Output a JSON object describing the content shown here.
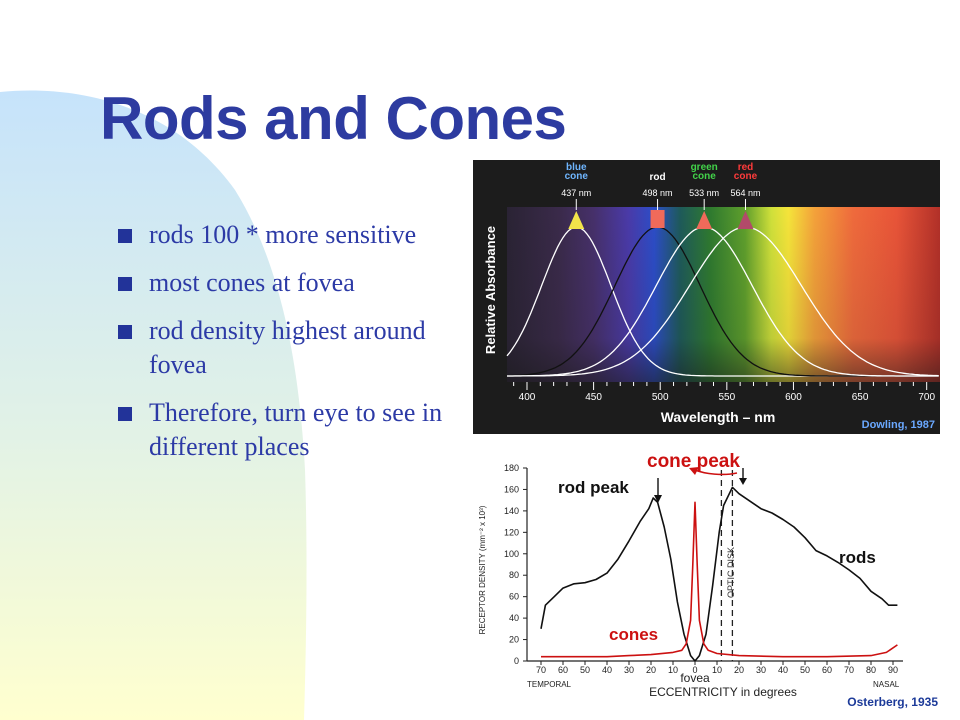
{
  "slide": {
    "title": "Rods and Cones",
    "bullets": [
      "rods 100 * more sensitive",
      "most cones at fovea",
      "rod density highest around fovea",
      "Therefore, turn eye to see in different places"
    ]
  },
  "colors": {
    "title": "#2d3ba0",
    "bullet_text": "#2c3aa6",
    "bullet_marker": "#223399",
    "background_gradient": [
      "#c6e3fb",
      "#ffffcf"
    ]
  },
  "chart_data": [
    {
      "type": "line",
      "title": "",
      "xlabel": "Wavelength – nm",
      "ylabel": "Relative Absorbance",
      "credit": "Dowling, 1987",
      "xlim": [
        385,
        710
      ],
      "x_ticks": [
        "400",
        "450",
        "500",
        "550",
        "600",
        "650",
        "700"
      ],
      "grid": false,
      "peak_labels": [
        {
          "label": "blue cone",
          "wavelength": "437 nm",
          "x": 437
        },
        {
          "label": "rod",
          "wavelength": "498 nm",
          "x": 498
        },
        {
          "label": "green cone",
          "wavelength": "533 nm",
          "x": 533
        },
        {
          "label": "red cone",
          "wavelength": "564 nm",
          "x": 564
        }
      ],
      "series": [
        {
          "peak": 437,
          "width": 26,
          "color": "#ffffff"
        },
        {
          "peak": 498,
          "width": 32,
          "color": "#111111"
        },
        {
          "peak": 533,
          "width": 36,
          "color": "#ffffff"
        },
        {
          "peak": 564,
          "width": 42,
          "color": "#ffffff"
        }
      ]
    },
    {
      "type": "line",
      "title": "",
      "xlabel": "ECCENTRICITY in degrees",
      "ylabel": "RECEPTOR DENSITY (mm⁻² x 10³)",
      "credit": "Osterberg, 1935",
      "xlim": [
        -75,
        95
      ],
      "ylim": [
        0,
        180
      ],
      "x_ticks": [
        "70",
        "60",
        "50",
        "40",
        "30",
        "20",
        "10",
        "0",
        "10",
        "20",
        "30",
        "40",
        "50",
        "60",
        "70",
        "80",
        "90"
      ],
      "y_ticks": [
        "0",
        "20",
        "40",
        "60",
        "80",
        "100",
        "120",
        "140",
        "160",
        "180"
      ],
      "x_side_labels": {
        "left": "TEMPORAL",
        "center": "fovea",
        "right": "NASAL"
      },
      "annotations": [
        "rod peak",
        "cone peak",
        "OPTIC DISK"
      ],
      "series": [
        {
          "name": "rods",
          "color": "#111111",
          "points": [
            [
              -70,
              30
            ],
            [
              -68,
              52
            ],
            [
              -64,
              60
            ],
            [
              -60,
              68
            ],
            [
              -55,
              72
            ],
            [
              -50,
              73
            ],
            [
              -45,
              76
            ],
            [
              -40,
              82
            ],
            [
              -35,
              95
            ],
            [
              -30,
              112
            ],
            [
              -25,
              130
            ],
            [
              -21,
              142
            ],
            [
              -19,
              152
            ],
            [
              -17,
              148
            ],
            [
              -14,
              125
            ],
            [
              -11,
              95
            ],
            [
              -8,
              55
            ],
            [
              -5,
              25
            ],
            [
              -2,
              5
            ],
            [
              0,
              0
            ],
            [
              2,
              5
            ],
            [
              5,
              25
            ],
            [
              8,
              70
            ],
            [
              11,
              120
            ],
            [
              13,
              145
            ],
            [
              17,
              162
            ],
            [
              20,
              156
            ],
            [
              25,
              149
            ],
            [
              30,
              142
            ],
            [
              35,
              138
            ],
            [
              40,
              132
            ],
            [
              45,
              125
            ],
            [
              50,
              115
            ],
            [
              55,
              103
            ],
            [
              60,
              98
            ],
            [
              65,
              92
            ],
            [
              70,
              85
            ],
            [
              75,
              77
            ],
            [
              80,
              65
            ],
            [
              85,
              58
            ],
            [
              88,
              52
            ],
            [
              92,
              52
            ]
          ]
        },
        {
          "name": "cones",
          "color": "#cc1111",
          "points": [
            [
              -70,
              4
            ],
            [
              -60,
              4
            ],
            [
              -50,
              4
            ],
            [
              -40,
              4
            ],
            [
              -30,
              5
            ],
            [
              -20,
              6
            ],
            [
              -10,
              8
            ],
            [
              -6,
              10
            ],
            [
              -4,
              16
            ],
            [
              -2,
              38
            ],
            [
              -1,
              90
            ],
            [
              0,
              148
            ],
            [
              1,
              90
            ],
            [
              2,
              38
            ],
            [
              4,
              16
            ],
            [
              6,
              10
            ],
            [
              10,
              7
            ],
            [
              20,
              5
            ],
            [
              40,
              4
            ],
            [
              60,
              4
            ],
            [
              80,
              5
            ],
            [
              87,
              8
            ],
            [
              92,
              15
            ]
          ]
        }
      ],
      "optic_disk": [
        12,
        17
      ]
    }
  ]
}
